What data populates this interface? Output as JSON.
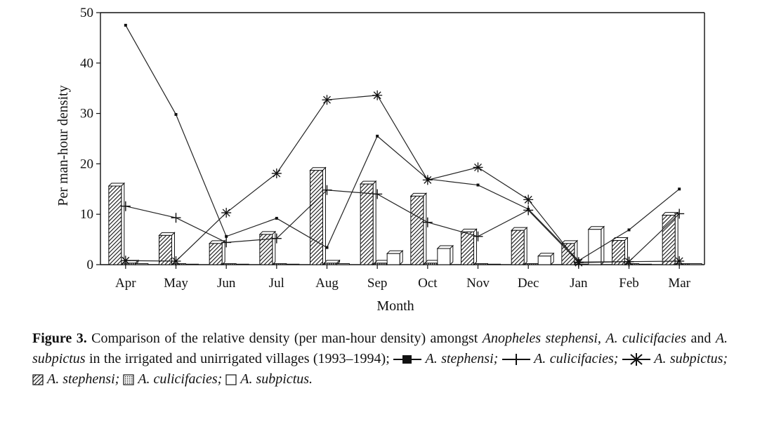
{
  "chart_data": {
    "type": "bar+line",
    "categories": [
      "Apr",
      "May",
      "Jun",
      "Jul",
      "Aug",
      "Sep",
      "Oct",
      "Nov",
      "Dec",
      "Jan",
      "Feb",
      "Mar"
    ],
    "xlabel": "Month",
    "ylabel": "Per man-hour density",
    "ylim": [
      0,
      50
    ],
    "yticks": [
      0,
      10,
      20,
      30,
      40,
      50
    ],
    "grid": false,
    "bar_series": [
      {
        "name": "A. stephensi",
        "pattern": "diagonal-hatch",
        "values": [
          15.6,
          5.8,
          4.2,
          6.0,
          18.7,
          16.0,
          13.6,
          6.5,
          6.8,
          4.2,
          4.8,
          9.8
        ]
      },
      {
        "name": "A. culicifacies",
        "pattern": "dotted",
        "values": [
          0.3,
          0.2,
          0.2,
          0.2,
          0.3,
          0.3,
          0.3,
          0.2,
          0.2,
          0.1,
          0.2,
          0.2
        ]
      },
      {
        "name": "A. subpictus",
        "pattern": "open",
        "values": [
          0.2,
          0.1,
          0.1,
          0.1,
          0.2,
          2.2,
          3.2,
          0.1,
          1.7,
          7.0,
          0.1,
          0.2
        ]
      }
    ],
    "line_series": [
      {
        "name": "A. stephensi",
        "marker": "square",
        "values": [
          47.5,
          29.8,
          5.6,
          9.2,
          3.4,
          25.5,
          17.0,
          15.8,
          11.0,
          0.8,
          6.9,
          15.0
        ]
      },
      {
        "name": "A. culicifacies",
        "marker": "plus",
        "values": [
          11.6,
          9.3,
          4.4,
          5.2,
          14.8,
          14.0,
          8.4,
          5.6,
          10.8,
          0.5,
          0.6,
          10.1
        ]
      },
      {
        "name": "A. subpictus",
        "marker": "asterisk",
        "values": [
          0.8,
          0.7,
          10.3,
          18.1,
          32.7,
          33.6,
          16.8,
          19.3,
          12.9,
          0.4,
          0.6,
          0.7
        ]
      }
    ]
  },
  "caption": {
    "label": "Figure 3.",
    "text_1": "Comparison of the relative density (per man-hour density) amongst",
    "species_1": "Anopheles stephensi,",
    "species_2": "A. culicifacies",
    "text_2": "and",
    "species_3": "A. subpictus",
    "text_3": "in the irrigated and unirrigated villages (1993–1994);",
    "leg_1": "A. stephensi;",
    "leg_2": "A. culicifacies;",
    "leg_3": "A. subpictus;",
    "leg_4": "A. stephensi;",
    "leg_5": "A. culicifacies;",
    "leg_6": "A. subpictus."
  }
}
